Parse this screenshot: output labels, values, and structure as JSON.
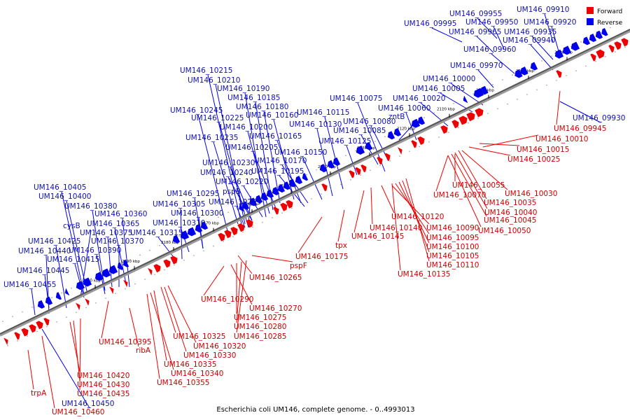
{
  "caption": "Escherichia coli UM146, complete genome. - 0..4993013",
  "legend": [
    {
      "label": "Forward",
      "color": "#ee0000"
    },
    {
      "label": "Reverse",
      "color": "#0000ee"
    }
  ],
  "colors": {
    "forward": "#ee0000",
    "reverse": "#0000ee",
    "backbone": "#555555"
  },
  "ticks": [
    "2080 kbp",
    "2090 kbp",
    "2100 kbp",
    "2110 kbp",
    "2120 kbp",
    "2130 kbp",
    "2140 kbp",
    "2150 kbp",
    "2160 kbp",
    "2170 kbp",
    "2180 kbp",
    "2190 kbp",
    "2200 kbp"
  ],
  "reverse_labels": [
    "UM146_09955",
    "UM146_09910",
    "UM146_09995",
    "UM146_09950",
    "UM146_09920",
    "UM146_09965",
    "UM146_09935",
    "UM146_09940",
    "UM146_09960",
    "UM146_09970",
    "UM146_10000",
    "UM146_10005",
    "UM146_10075",
    "UM146_10020",
    "UM146_10060",
    "UM146_10215",
    "UM146_10210",
    "UM146_10190",
    "UM146_10185",
    "UM146_10180",
    "UM146_10245",
    "UM146_10160",
    "UM146_10225",
    "UM146_10115",
    "UM146_10200",
    "UM146_10130",
    "UM146_10080",
    "UM146_10165",
    "UM146_10085",
    "UM146_10235",
    "UM146_10205",
    "UM146_10125",
    "UM146_10150",
    "UM146_10230",
    "UM146_10170",
    "UM146_10240",
    "UM146_10195",
    "UM146_10220",
    "pspB",
    "UM146_10295",
    "UM146_10255",
    "UM146_10305",
    "UM146_10300",
    "UM146_10405",
    "UM146_10400",
    "UM146_10380",
    "UM146_10360",
    "UM146_10365",
    "UM146_10310",
    "cysB",
    "UM146_10375",
    "UM146_10315",
    "UM146_10425",
    "UM146_10370",
    "UM146_10440",
    "UM146_10390",
    "UM146_10415",
    "UM146_10445",
    "UM146_10455",
    "zntB",
    "UM146_09930",
    "UM146_10450"
  ],
  "forward_labels": [
    "UM146_09945",
    "UM146_10010",
    "UM146_10015",
    "UM146_10025",
    "UM146_10055",
    "UM146_10070",
    "UM146_10030",
    "UM146_10035",
    "UM146_10040",
    "UM146_10045",
    "UM146_10050",
    "UM146_10120",
    "UM146_10140",
    "UM146_10090",
    "UM146_10145",
    "UM146_10095",
    "UM146_10100",
    "UM146_10105",
    "UM146_10110",
    "UM146_10135",
    "tpx",
    "UM146_10175",
    "pspF",
    "UM146_10265",
    "UM146_10290",
    "UM146_10270",
    "UM146_10275",
    "UM146_10280",
    "UM146_10285",
    "UM146_10395",
    "ribA",
    "UM146_10325",
    "UM146_10320",
    "UM146_10330",
    "UM146_10335",
    "UM146_10340",
    "UM146_10355",
    "UM146_10420",
    "UM146_10430",
    "UM146_10435",
    "trpA",
    "UM146_10460"
  ]
}
